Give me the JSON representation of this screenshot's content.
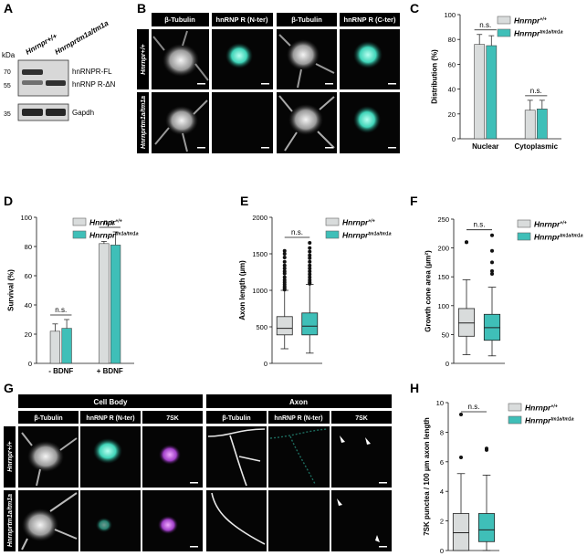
{
  "colors": {
    "wt": "#d9dcdc",
    "mut": "#3fbfb8",
    "scale": "#ffffff"
  },
  "panels": {
    "A": {
      "letter": "A",
      "unit": "kDa",
      "lane1": "Hnrnpr+/+",
      "lane2": "Hnrnprtm1a/tm1a",
      "markers": [
        "70",
        "55",
        "35"
      ],
      "bands": [
        "hnRNPR-FL",
        "hnRNP R-ΔN",
        "Gapdh"
      ]
    },
    "B": {
      "letter": "B",
      "columns": [
        "β-Tubulin",
        "hnRNP R (N-ter)",
        "β-Tubulin",
        "hnRNP R (C-ter)"
      ],
      "rows": [
        "Hnrnpr+/+",
        "Hnrnprtm1a/tm1a"
      ]
    },
    "C": {
      "letter": "C",
      "ns": [
        "n.s.",
        "n.s."
      ]
    },
    "D": {
      "letter": "D",
      "ns": [
        "n.s."
      ]
    },
    "E": {
      "letter": "E",
      "ns": [
        "n.s."
      ]
    },
    "F": {
      "letter": "F",
      "ns": [
        "n.s."
      ]
    },
    "G": {
      "letter": "G",
      "group1": "Cell Body",
      "group2": "Axon",
      "columns": [
        "β-Tubulin",
        "hnRNP R (N-ter)",
        "7SK",
        "β-Tubulin",
        "hnRNP R (N-ter)",
        "7SK"
      ],
      "rows": [
        "Hnrnpr+/+",
        "Hnrnprtm1a/tm1a"
      ]
    },
    "H": {
      "letter": "H",
      "ns": [
        "n.s."
      ]
    }
  },
  "legend": {
    "wt": "Hnrnpr+/+",
    "mut": "Hnrnprtm1a/tm1a"
  },
  "chart_data": [
    {
      "id": "C",
      "type": "bar",
      "categories": [
        "Nuclear",
        "Cytoplasmic"
      ],
      "series": [
        {
          "name": "Hnrnpr+/+",
          "values": [
            76,
            23
          ],
          "err": [
            8,
            8
          ]
        },
        {
          "name": "Hnrnprtm1a/tm1a",
          "values": [
            75,
            24
          ],
          "err": [
            8,
            7
          ]
        }
      ],
      "ylabel": "Distribution (%)",
      "ylim": [
        0,
        100
      ],
      "yticks": [
        0,
        20,
        40,
        60,
        80,
        100
      ]
    },
    {
      "id": "D",
      "type": "bar",
      "categories": [
        "- BDNF",
        "+ BDNF"
      ],
      "series": [
        {
          "name": "Hnrnpr+/+",
          "values": [
            22,
            82
          ],
          "err": [
            5,
            1.5
          ]
        },
        {
          "name": "Hnrnprtm1a/tm1a",
          "values": [
            24,
            81
          ],
          "err": [
            6,
            9
          ]
        }
      ],
      "ylabel": "Survival (%)",
      "ylim": [
        0,
        100
      ],
      "yticks": [
        0,
        20,
        40,
        60,
        80,
        100
      ]
    },
    {
      "id": "E",
      "type": "box",
      "categories": [
        "Hnrnpr+/+",
        "Hnrnprtm1a/tm1a"
      ],
      "boxes": [
        {
          "min": 200,
          "q1": 390,
          "median": 480,
          "q3": 640,
          "max": 1000,
          "outliers": [
            1010,
            1030,
            1050,
            1080,
            1110,
            1140,
            1180,
            1230,
            1260,
            1300,
            1340,
            1390,
            1450,
            1500,
            1540
          ]
        },
        {
          "min": 140,
          "q1": 390,
          "median": 510,
          "q3": 690,
          "max": 1080,
          "outliers": [
            1090,
            1110,
            1140,
            1180,
            1220,
            1260,
            1300,
            1340,
            1390,
            1440,
            1480,
            1530,
            1580,
            1650
          ]
        }
      ],
      "ylabel": "Axon length (µm)",
      "ylim": [
        0,
        2000
      ],
      "yticks": [
        0,
        500,
        1000,
        1500,
        2000
      ]
    },
    {
      "id": "F",
      "type": "box",
      "categories": [
        "Hnrnpr+/+",
        "Hnrnprtm1a/tm1a"
      ],
      "boxes": [
        {
          "min": 15,
          "q1": 47,
          "median": 70,
          "q3": 95,
          "max": 145,
          "outliers": [
            210,
            210
          ]
        },
        {
          "min": 13,
          "q1": 40,
          "median": 62,
          "q3": 85,
          "max": 132,
          "outliers": [
            155,
            160,
            175,
            195,
            222
          ]
        }
      ],
      "ylabel": "Growth cone area (µm²)",
      "ylim": [
        0,
        250
      ],
      "yticks": [
        0,
        50,
        100,
        150,
        200,
        250
      ]
    },
    {
      "id": "H",
      "type": "box",
      "categories": [
        "Hnrnpr+/+",
        "Hnrnprtm1a/tm1a"
      ],
      "boxes": [
        {
          "min": 0,
          "q1": 0,
          "median": 1.2,
          "q3": 2.5,
          "max": 5.2,
          "outliers": [
            6.3,
            9.2
          ]
        },
        {
          "min": 0,
          "q1": 0.6,
          "median": 1.4,
          "q3": 2.5,
          "max": 5.1,
          "outliers": [
            6.8,
            6.9
          ]
        }
      ],
      "ylabel": "7SK punctea / 100 µm axon length",
      "ylim": [
        0,
        10
      ],
      "yticks": [
        0,
        2,
        4,
        6,
        8,
        10
      ]
    }
  ]
}
